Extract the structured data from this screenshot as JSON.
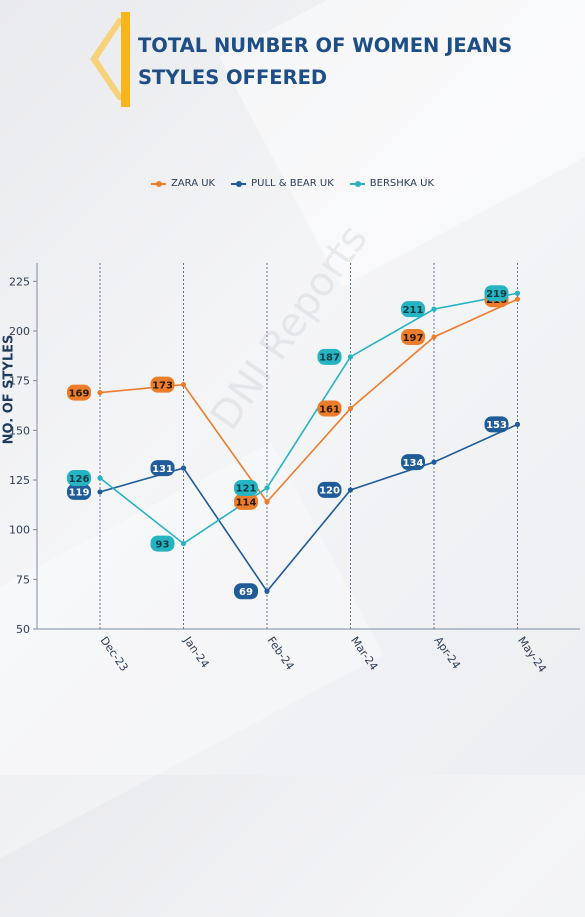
{
  "header": {
    "title_line1": "TOTAL NUMBER OF WOMEN JEANS",
    "title_line2": "STYLES OFFERED"
  },
  "watermark": "DNI Reports",
  "colors": {
    "zara": "#ec7d2c",
    "pull_bear": "#1f5c99",
    "bershka": "#26b3c2",
    "title": "#1d4e86",
    "accent": "#f6b51d"
  },
  "chart_data": {
    "type": "line",
    "title": "TOTAL NUMBER OF WOMEN JEANS STYLES OFFERED",
    "xlabel": "",
    "ylabel": "NO. OF STYLES",
    "categories": [
      "Dec-23",
      "Jan-24",
      "Feb-24",
      "Mar-24",
      "Apr-24",
      "May-24"
    ],
    "ylim": [
      50,
      235
    ],
    "yticks": [
      50,
      75,
      100,
      125,
      150,
      175,
      200,
      225
    ],
    "grid": "vertical dashed",
    "legend": "top-center",
    "series": [
      {
        "name": "ZARA UK",
        "color": "#ec7d2c",
        "values": [
          169,
          173,
          114,
          161,
          197,
          216
        ]
      },
      {
        "name": "PULL & BEAR UK",
        "color": "#1f5c99",
        "values": [
          119,
          131,
          69,
          120,
          134,
          153
        ]
      },
      {
        "name": "BERSHKA UK",
        "color": "#26b3c2",
        "values": [
          126,
          93,
          121,
          187,
          211,
          219
        ]
      }
    ]
  }
}
